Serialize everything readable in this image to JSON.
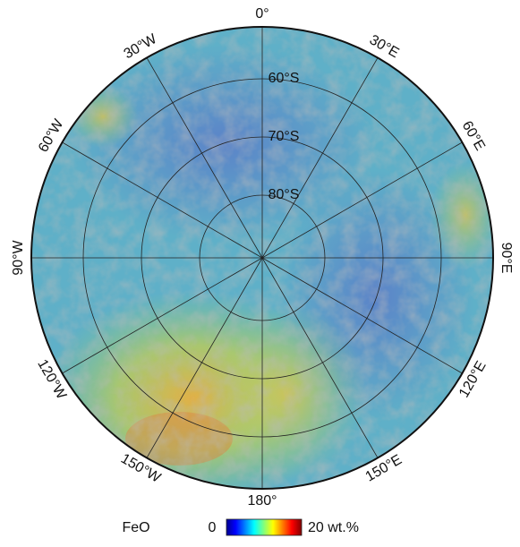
{
  "map": {
    "longitude_labels": [
      "0°",
      "30°E",
      "60°E",
      "90°E",
      "120°E",
      "150°E",
      "180°",
      "150°W",
      "120°W",
      "90°W",
      "60°W",
      "30°W"
    ],
    "latitude_labels": [
      "60°S",
      "70°S",
      "80°S"
    ]
  },
  "legend": {
    "title": "FeO",
    "min_label": "0",
    "max_label": "20 wt.%"
  }
}
